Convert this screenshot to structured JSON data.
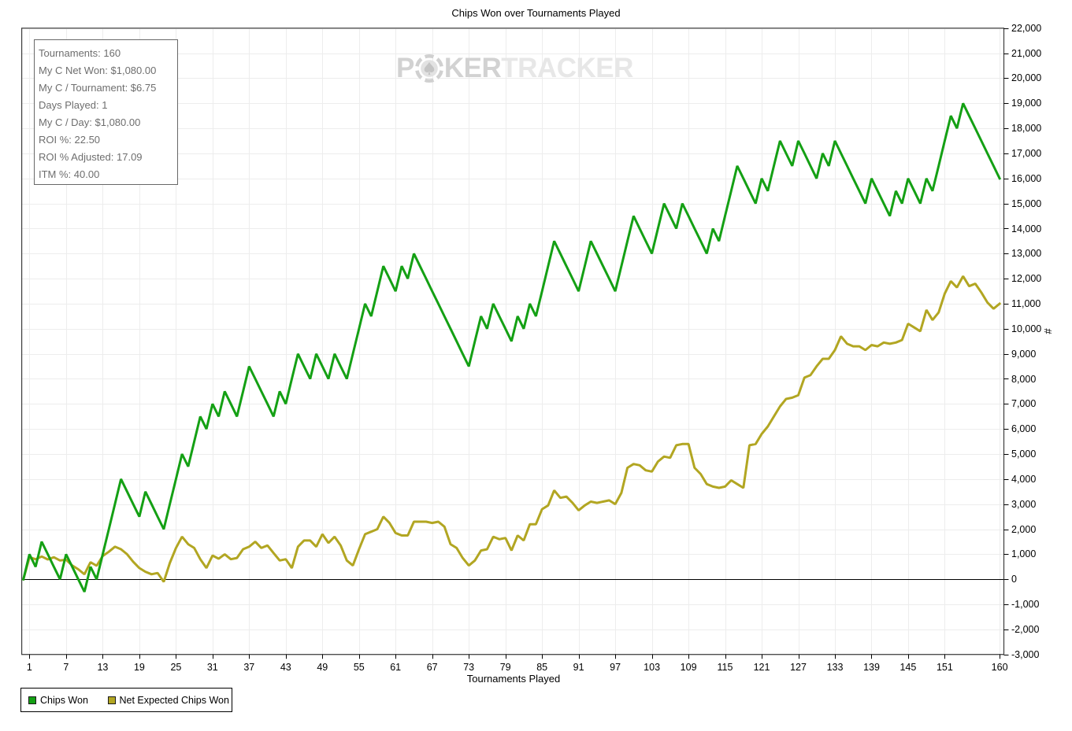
{
  "title": "Chips Won over Tournaments Played",
  "watermark": {
    "part1": "P",
    "part2": "KER",
    "part3": "TRACKER",
    "chip_icon": "poker-chip-icon"
  },
  "stats_box": {
    "lines": [
      "Tournaments: 160",
      "My C Net Won: $1,080.00",
      "My C / Tournament: $6.75",
      "Days Played: 1",
      "My C / Day: $1,080.00",
      "ROI %: 22.50",
      "ROI % Adjusted: 17.09",
      "ITM %: 40.00"
    ]
  },
  "legend": {
    "items": [
      {
        "label": "Chips Won",
        "color": "#14a014"
      },
      {
        "label": "Net Expected Chips Won",
        "color": "#b2a622"
      }
    ]
  },
  "chart_data": {
    "type": "line",
    "title": "Chips Won over Tournaments Played",
    "xlabel": "Tournaments Played",
    "ylabel": "#",
    "xlim": [
      0,
      160
    ],
    "ylim": [
      -3000,
      22000
    ],
    "grid": true,
    "legend_position": "bottom-left",
    "x_tick_values": [
      1,
      7,
      13,
      19,
      25,
      31,
      37,
      43,
      49,
      55,
      61,
      67,
      73,
      79,
      85,
      91,
      97,
      103,
      109,
      115,
      121,
      127,
      133,
      139,
      145,
      151,
      160
    ],
    "y_tick_step": 1000,
    "y_tick_values": [
      -3000,
      -2000,
      -1000,
      0,
      1000,
      2000,
      3000,
      4000,
      5000,
      6000,
      7000,
      8000,
      9000,
      10000,
      11000,
      12000,
      13000,
      14000,
      15000,
      16000,
      17000,
      18000,
      19000,
      20000,
      21000,
      22000
    ],
    "x": [
      0,
      1,
      2,
      3,
      4,
      5,
      6,
      7,
      8,
      9,
      10,
      11,
      12,
      13,
      14,
      15,
      16,
      17,
      18,
      19,
      20,
      21,
      22,
      23,
      24,
      25,
      26,
      27,
      28,
      29,
      30,
      31,
      32,
      33,
      34,
      35,
      36,
      37,
      38,
      39,
      40,
      41,
      42,
      43,
      44,
      45,
      46,
      47,
      48,
      49,
      50,
      51,
      52,
      53,
      54,
      55,
      56,
      57,
      58,
      59,
      60,
      61,
      62,
      63,
      64,
      65,
      66,
      67,
      68,
      69,
      70,
      71,
      72,
      73,
      74,
      75,
      76,
      77,
      78,
      79,
      80,
      81,
      82,
      83,
      84,
      85,
      86,
      87,
      88,
      89,
      90,
      91,
      92,
      93,
      94,
      95,
      96,
      97,
      98,
      99,
      100,
      101,
      102,
      103,
      104,
      105,
      106,
      107,
      108,
      109,
      110,
      111,
      112,
      113,
      114,
      115,
      116,
      117,
      118,
      119,
      120,
      121,
      122,
      123,
      124,
      125,
      126,
      127,
      128,
      129,
      130,
      131,
      132,
      133,
      134,
      135,
      136,
      137,
      138,
      139,
      140,
      141,
      142,
      143,
      144,
      145,
      146,
      147,
      148,
      149,
      150,
      151,
      152,
      153,
      154,
      155,
      156,
      157,
      158,
      159,
      160
    ],
    "series": [
      {
        "name": "Chips Won",
        "color": "#14a014",
        "values": [
          0,
          1000,
          500,
          1500,
          1000,
          500,
          0,
          1000,
          500,
          0,
          -500,
          500,
          0,
          1000,
          2000,
          3000,
          4000,
          3500,
          3000,
          2500,
          3500,
          3000,
          2500,
          2000,
          3000,
          4000,
          5000,
          4500,
          5500,
          6500,
          6000,
          7000,
          6500,
          7500,
          7000,
          6500,
          7500,
          8500,
          8000,
          7500,
          7000,
          6500,
          7500,
          7000,
          8000,
          9000,
          8500,
          8000,
          9000,
          8500,
          8000,
          9000,
          8500,
          8000,
          9000,
          10000,
          11000,
          10500,
          11500,
          12500,
          12000,
          11500,
          12500,
          12000,
          13000,
          12500,
          12000,
          11500,
          11000,
          10500,
          10000,
          9500,
          9000,
          8500,
          9500,
          10500,
          10000,
          11000,
          10500,
          10000,
          9500,
          10500,
          10000,
          11000,
          10500,
          11500,
          12500,
          13500,
          13000,
          12500,
          12000,
          11500,
          12500,
          13500,
          13000,
          12500,
          12000,
          11500,
          12500,
          13500,
          14500,
          14000,
          13500,
          13000,
          14000,
          15000,
          14500,
          14000,
          15000,
          14500,
          14000,
          13500,
          13000,
          14000,
          13500,
          14500,
          15500,
          16500,
          16000,
          15500,
          15000,
          16000,
          15500,
          16500,
          17500,
          17000,
          16500,
          17500,
          17000,
          16500,
          16000,
          17000,
          16500,
          17500,
          17000,
          16500,
          16000,
          15500,
          15000,
          16000,
          15500,
          15000,
          14500,
          15500,
          15000,
          16000,
          15500,
          15000,
          16000,
          15500,
          16500,
          17500,
          18500,
          18000,
          19000,
          18500,
          18000,
          17500,
          17000,
          16500,
          16000
        ]
      },
      {
        "name": "Net Expected Chips Won",
        "color": "#b2a622",
        "values": [
          0,
          880,
          800,
          910,
          790,
          880,
          750,
          780,
          550,
          400,
          200,
          680,
          540,
          930,
          1100,
          1300,
          1200,
          1000,
          700,
          450,
          300,
          200,
          250,
          -100,
          650,
          1250,
          1700,
          1400,
          1250,
          800,
          450,
          950,
          820,
          1000,
          800,
          850,
          1200,
          1300,
          1500,
          1250,
          1350,
          1050,
          750,
          800,
          450,
          1300,
          1550,
          1550,
          1300,
          1800,
          1450,
          1700,
          1350,
          750,
          550,
          1200,
          1800,
          1900,
          2000,
          2500,
          2250,
          1850,
          1750,
          1750,
          2300,
          2300,
          2300,
          2250,
          2300,
          2100,
          1400,
          1250,
          850,
          550,
          750,
          1150,
          1200,
          1700,
          1600,
          1650,
          1150,
          1750,
          1550,
          2200,
          2200,
          2800,
          2950,
          3550,
          3250,
          3300,
          3050,
          2750,
          2950,
          3100,
          3050,
          3100,
          3150,
          3000,
          3450,
          4450,
          4600,
          4550,
          4350,
          4300,
          4700,
          4900,
          4850,
          5350,
          5400,
          5400,
          4450,
          4200,
          3800,
          3700,
          3650,
          3700,
          3950,
          3800,
          3650,
          5350,
          5400,
          5800,
          6100,
          6500,
          6900,
          7200,
          7250,
          7350,
          8050,
          8150,
          8500,
          8800,
          8800,
          9150,
          9700,
          9400,
          9300,
          9300,
          9150,
          9350,
          9300,
          9450,
          9400,
          9450,
          9550,
          10200,
          10050,
          9900,
          10750,
          10350,
          10650,
          11400,
          11900,
          11650,
          12100,
          11700,
          11800,
          11450,
          11050,
          10800,
          11000
        ]
      }
    ]
  }
}
